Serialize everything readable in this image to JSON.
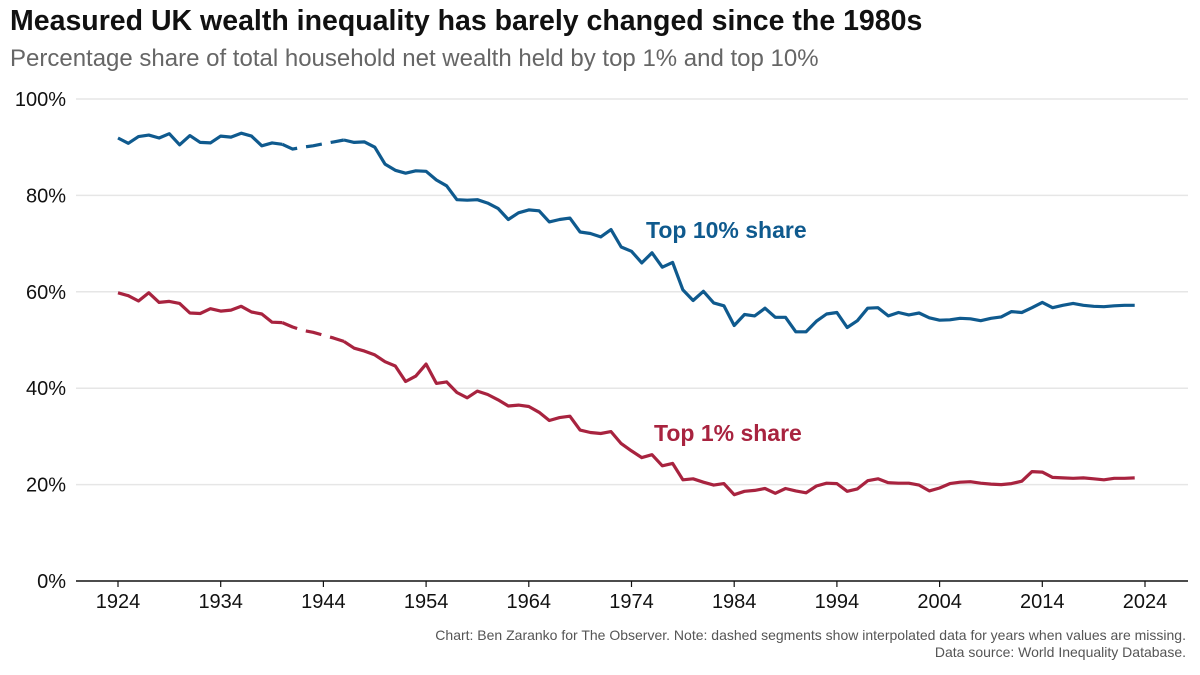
{
  "title": "Measured UK wealth inequality has barely changed since the 1980s",
  "subtitle": "Percentage share of total household net wealth held by top 1% and top 10%",
  "footer": {
    "note": "Chart: Ben Zaranko for The Observer. Note: dashed segments show interpolated data for years when values are missing.",
    "source": "Data source: World Inequality Database."
  },
  "colors": {
    "top10": "#0f5a8e",
    "top1": "#a8233f",
    "grid": "#e6e6e6",
    "axis": "#111111"
  },
  "chart_data": {
    "type": "line",
    "ylim": [
      0,
      100
    ],
    "xlim": [
      1924,
      2024
    ],
    "y_ticks": [
      0,
      20,
      40,
      60,
      80,
      100
    ],
    "y_tick_labels": [
      "0%",
      "20%",
      "40%",
      "60%",
      "80%",
      "100%"
    ],
    "x_ticks": [
      1924,
      1934,
      1944,
      1954,
      1964,
      1974,
      1984,
      1994,
      2004,
      2014,
      2024
    ],
    "x_tick_labels": [
      "1924",
      "1934",
      "1944",
      "1954",
      "1964",
      "1974",
      "1984",
      "1994",
      "2004",
      "2014",
      "2024"
    ],
    "grid": "horizontal",
    "interpolated_years": [
      1940,
      1946
    ],
    "series": [
      {
        "name": "Top 10% share",
        "x": [
          1924,
          1925,
          1926,
          1927,
          1928,
          1929,
          1930,
          1931,
          1932,
          1933,
          1934,
          1935,
          1936,
          1937,
          1938,
          1939,
          1940,
          1941,
          1942,
          1943,
          1944,
          1945,
          1946,
          1947,
          1948,
          1949,
          1950,
          1951,
          1952,
          1953,
          1954,
          1955,
          1956,
          1957,
          1958,
          1959,
          1960,
          1961,
          1962,
          1963,
          1964,
          1965,
          1966,
          1967,
          1968,
          1969,
          1970,
          1971,
          1972,
          1973,
          1974,
          1975,
          1976,
          1977,
          1978,
          1979,
          1980,
          1981,
          1982,
          1983,
          1984,
          1985,
          1986,
          1987,
          1988,
          1989,
          1990,
          1991,
          1992,
          1993,
          1994,
          1995,
          1996,
          1997,
          1998,
          1999,
          2000,
          2001,
          2002,
          2003,
          2004,
          2005,
          2006,
          2007,
          2008,
          2009,
          2010,
          2011,
          2012,
          2013,
          2014,
          2015,
          2016,
          2017,
          2018,
          2019,
          2020,
          2021,
          2022,
          2023
        ],
        "values": [
          91.9,
          90.8,
          92.2,
          92.5,
          91.9,
          92.8,
          90.5,
          92.4,
          91.0,
          90.9,
          92.3,
          92.1,
          92.9,
          92.3,
          90.3,
          90.9,
          90.6,
          89.6,
          90.0,
          90.3,
          90.7,
          91.1,
          91.5,
          91.0,
          91.1,
          90.0,
          86.5,
          85.2,
          84.6,
          85.1,
          85.0,
          83.2,
          82.0,
          79.1,
          79.0,
          79.1,
          78.4,
          77.3,
          75.0,
          76.4,
          77.0,
          76.8,
          74.5,
          75.0,
          75.3,
          72.4,
          72.1,
          71.4,
          72.9,
          69.3,
          68.4,
          66.0,
          68.1,
          65.1,
          66.1,
          60.4,
          58.2,
          60.1,
          57.7,
          57.1,
          53.0,
          55.3,
          55.0,
          56.6,
          54.7,
          54.7,
          51.7,
          51.7,
          53.9,
          55.4,
          55.7,
          52.6,
          54.0,
          56.6,
          56.7,
          55.0,
          55.7,
          55.2,
          55.6,
          54.6,
          54.1,
          54.2,
          54.5,
          54.4,
          54.0,
          54.5,
          54.8,
          55.9,
          55.7,
          56.7,
          57.8,
          56.7,
          57.2,
          57.6,
          57.2,
          57.0,
          56.9,
          57.1,
          57.2,
          57.2
        ]
      },
      {
        "name": "Top 1% share",
        "x": [
          1924,
          1925,
          1926,
          1927,
          1928,
          1929,
          1930,
          1931,
          1932,
          1933,
          1934,
          1935,
          1936,
          1937,
          1938,
          1939,
          1940,
          1941,
          1942,
          1943,
          1944,
          1945,
          1946,
          1947,
          1948,
          1949,
          1950,
          1951,
          1952,
          1953,
          1954,
          1955,
          1956,
          1957,
          1958,
          1959,
          1960,
          1961,
          1962,
          1963,
          1964,
          1965,
          1966,
          1967,
          1968,
          1969,
          1970,
          1971,
          1972,
          1973,
          1974,
          1975,
          1976,
          1977,
          1978,
          1979,
          1980,
          1981,
          1982,
          1983,
          1984,
          1985,
          1986,
          1987,
          1988,
          1989,
          1990,
          1991,
          1992,
          1993,
          1994,
          1995,
          1996,
          1997,
          1998,
          1999,
          2000,
          2001,
          2002,
          2003,
          2004,
          2005,
          2006,
          2007,
          2008,
          2009,
          2010,
          2011,
          2012,
          2013,
          2014,
          2015,
          2016,
          2017,
          2018,
          2019,
          2020,
          2021,
          2022,
          2023
        ],
        "values": [
          59.8,
          59.2,
          58.1,
          59.8,
          57.8,
          58.0,
          57.6,
          55.6,
          55.5,
          56.5,
          56.0,
          56.2,
          57.0,
          55.8,
          55.4,
          53.7,
          53.6,
          52.7,
          52.0,
          51.6,
          51.0,
          50.4,
          49.7,
          48.3,
          47.7,
          46.9,
          45.5,
          44.6,
          41.4,
          42.5,
          45.0,
          41.0,
          41.3,
          39.1,
          38.0,
          39.4,
          38.7,
          37.6,
          36.3,
          36.5,
          36.2,
          35.0,
          33.3,
          33.9,
          34.2,
          31.3,
          30.8,
          30.6,
          31.0,
          28.5,
          27.0,
          25.6,
          26.2,
          23.9,
          24.4,
          21.0,
          21.2,
          20.5,
          19.9,
          20.2,
          17.9,
          18.6,
          18.8,
          19.2,
          18.2,
          19.2,
          18.7,
          18.3,
          19.7,
          20.3,
          20.2,
          18.6,
          19.1,
          20.8,
          21.2,
          20.4,
          20.3,
          20.3,
          19.9,
          18.7,
          19.3,
          20.2,
          20.5,
          20.6,
          20.3,
          20.1,
          20.0,
          20.2,
          20.7,
          22.7,
          22.6,
          21.5,
          21.4,
          21.3,
          21.4,
          21.2,
          21.0,
          21.3,
          21.3,
          21.4
        ]
      }
    ],
    "annotations": [
      {
        "text": "Top 10% share",
        "series": "Top 10% share"
      },
      {
        "text": "Top 1% share",
        "series": "Top 1% share"
      }
    ]
  }
}
